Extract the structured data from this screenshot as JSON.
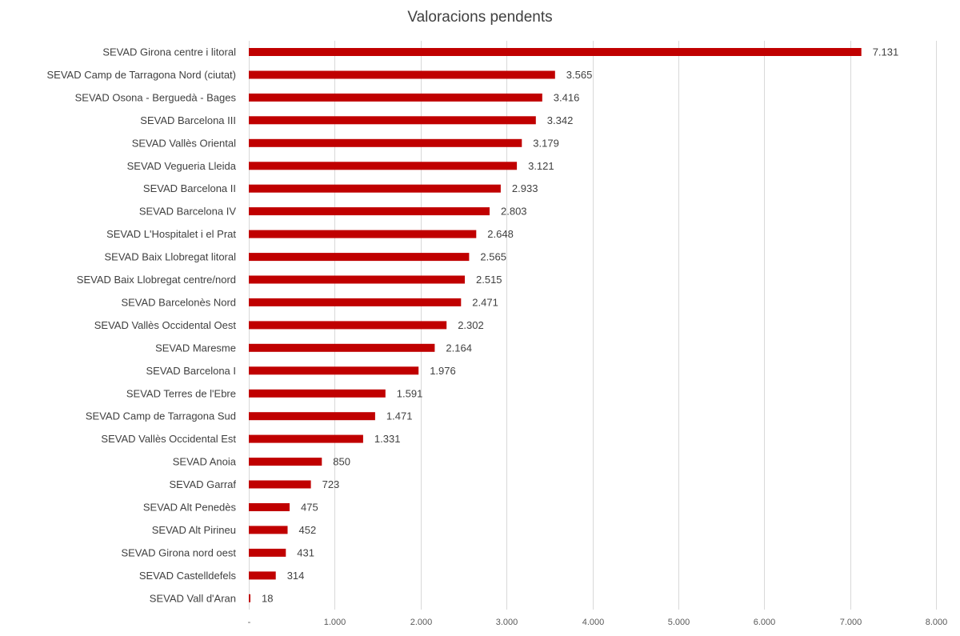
{
  "chart_data": {
    "type": "bar",
    "orientation": "horizontal",
    "title": "Valoracions pendents",
    "xlabel": "",
    "ylabel": "",
    "xlim": [
      0,
      8000
    ],
    "grid": true,
    "legend": "none",
    "bar_color": "#c00000",
    "x_ticks": [
      {
        "value": 0,
        "label": "-"
      },
      {
        "value": 1000,
        "label": "1.000"
      },
      {
        "value": 2000,
        "label": "2.000"
      },
      {
        "value": 3000,
        "label": "3.000"
      },
      {
        "value": 4000,
        "label": "4.000"
      },
      {
        "value": 5000,
        "label": "5.000"
      },
      {
        "value": 6000,
        "label": "6.000"
      },
      {
        "value": 7000,
        "label": "7.000"
      },
      {
        "value": 8000,
        "label": "8.000"
      }
    ],
    "categories": [
      "SEVAD Girona centre i litoral",
      "SEVAD Camp de Tarragona Nord (ciutat)",
      "SEVAD Osona - Berguedà - Bages",
      "SEVAD Barcelona III",
      "SEVAD Vallès Oriental",
      "SEVAD Vegueria Lleida",
      "SEVAD Barcelona II",
      "SEVAD Barcelona IV",
      "SEVAD L'Hospitalet i el Prat",
      "SEVAD Baix Llobregat litoral",
      "SEVAD Baix Llobregat centre/nord",
      "SEVAD Barcelonès Nord",
      "SEVAD Vallès Occidental Oest",
      "SEVAD Maresme",
      "SEVAD Barcelona I",
      "SEVAD Terres de l'Ebre",
      "SEVAD Camp de Tarragona Sud",
      "SEVAD Vallès Occidental Est",
      "SEVAD Anoia",
      "SEVAD Garraf",
      "SEVAD Alt Penedès",
      "SEVAD Alt Pirineu",
      "SEVAD Girona nord oest",
      "SEVAD Castelldefels",
      "SEVAD Vall d'Aran"
    ],
    "values": [
      7131,
      3565,
      3416,
      3342,
      3179,
      3121,
      2933,
      2803,
      2648,
      2565,
      2515,
      2471,
      2302,
      2164,
      1976,
      1591,
      1471,
      1331,
      850,
      723,
      475,
      452,
      431,
      314,
      18
    ],
    "value_labels": [
      "7.131",
      "3.565",
      "3.416",
      "3.342",
      "3.179",
      "3.121",
      "2.933",
      "2.803",
      "2.648",
      "2.565",
      "2.515",
      "2.471",
      "2.302",
      "2.164",
      "1.976",
      "1.591",
      "1.471",
      "1.331",
      "850",
      "723",
      "475",
      "452",
      "431",
      "314",
      "18"
    ]
  }
}
